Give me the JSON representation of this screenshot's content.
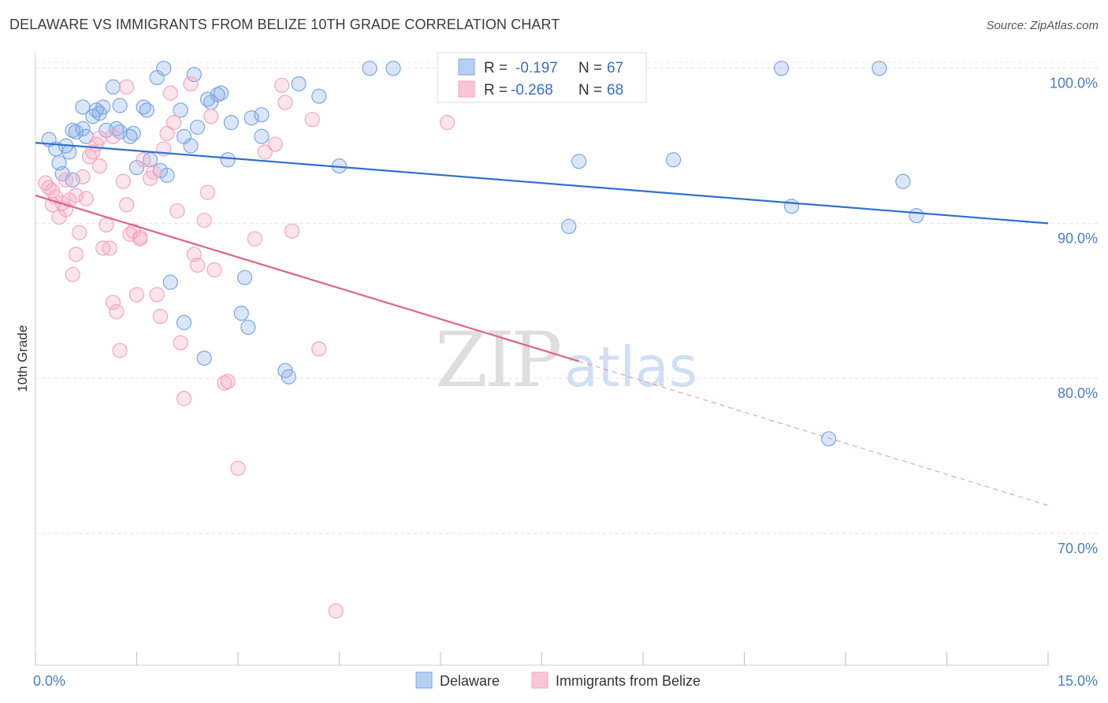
{
  "title": "DELAWARE VS IMMIGRANTS FROM BELIZE 10TH GRADE CORRELATION CHART",
  "source": "Source: ZipAtlas.com",
  "chart_data": {
    "type": "scatter",
    "ylabel": "10th Grade",
    "x_tick_labels": [
      "0.0%",
      "15.0%"
    ],
    "y_tick_labels": [
      "100.0%",
      "90.0%",
      "80.0%",
      "70.0%"
    ],
    "y_ticks": [
      100,
      90,
      80,
      70
    ],
    "xlim": [
      0,
      15
    ],
    "ylim": [
      61.5,
      101
    ],
    "grid": true,
    "legend_placement": "top-center",
    "watermark": "ZIPatlas",
    "stats": [
      {
        "r_label": "R =",
        "r": "-0.197",
        "n_label": "N =",
        "n": "67"
      },
      {
        "r_label": "R =",
        "r": "-0.268",
        "n_label": "N =",
        "n": "68"
      }
    ],
    "series": [
      {
        "name": "Delaware",
        "color": "#7aa7e6",
        "line_color": "#2f6fd0",
        "trend": {
          "x": [
            0.0,
            15.0
          ],
          "y": [
            95.2,
            90.0
          ]
        },
        "points": [
          [
            0.2,
            95.4
          ],
          [
            0.3,
            94.8
          ],
          [
            0.35,
            93.9
          ],
          [
            0.4,
            93.2
          ],
          [
            0.45,
            95.0
          ],
          [
            0.5,
            94.6
          ],
          [
            0.55,
            96.0
          ],
          [
            0.6,
            95.9
          ],
          [
            0.7,
            96.1
          ],
          [
            0.75,
            95.6
          ],
          [
            0.7,
            97.5
          ],
          [
            0.85,
            96.9
          ],
          [
            0.9,
            97.3
          ],
          [
            0.95,
            97.1
          ],
          [
            1.0,
            97.5
          ],
          [
            1.05,
            96.0
          ],
          [
            1.15,
            98.8
          ],
          [
            1.2,
            96.1
          ],
          [
            1.25,
            97.6
          ],
          [
            1.4,
            95.6
          ],
          [
            1.45,
            95.8
          ],
          [
            1.5,
            93.6
          ],
          [
            1.6,
            97.5
          ],
          [
            1.65,
            97.3
          ],
          [
            1.7,
            94.1
          ],
          [
            1.8,
            99.4
          ],
          [
            1.9,
            100.0
          ],
          [
            1.95,
            93.1
          ],
          [
            2.0,
            86.2
          ],
          [
            2.15,
            97.3
          ],
          [
            2.2,
            95.6
          ],
          [
            2.3,
            95.0
          ],
          [
            2.35,
            99.6
          ],
          [
            2.4,
            96.2
          ],
          [
            2.5,
            81.3
          ],
          [
            2.55,
            98.0
          ],
          [
            2.6,
            97.8
          ],
          [
            2.75,
            98.4
          ],
          [
            2.7,
            98.3
          ],
          [
            2.85,
            94.1
          ],
          [
            2.9,
            96.5
          ],
          [
            3.05,
            84.2
          ],
          [
            3.15,
            83.3
          ],
          [
            3.2,
            96.8
          ],
          [
            3.35,
            97.0
          ],
          [
            3.35,
            95.6
          ],
          [
            3.7,
            80.5
          ],
          [
            3.75,
            80.1
          ],
          [
            3.9,
            99.0
          ],
          [
            4.2,
            98.2
          ],
          [
            4.5,
            93.7
          ],
          [
            4.95,
            100.0
          ],
          [
            5.3,
            100.0
          ],
          [
            7.9,
            89.8
          ],
          [
            8.05,
            94.0
          ],
          [
            9.45,
            94.1
          ],
          [
            11.05,
            100.0
          ],
          [
            11.2,
            91.1
          ],
          [
            11.75,
            76.1
          ],
          [
            12.5,
            100.0
          ],
          [
            12.85,
            92.7
          ],
          [
            13.05,
            90.5
          ],
          [
            1.85,
            93.4
          ],
          [
            2.2,
            83.6
          ],
          [
            3.1,
            86.5
          ],
          [
            1.25,
            95.9
          ],
          [
            0.55,
            92.8
          ]
        ]
      },
      {
        "name": "Immigrants from Belize",
        "color": "#f4a6bf",
        "line_color": "#e0628f",
        "trend": {
          "x": [
            0.0,
            8.05
          ],
          "y": [
            91.8,
            81.1
          ]
        },
        "trend_dashed": {
          "x": [
            8.05,
            15.0
          ],
          "y": [
            81.1,
            71.8
          ]
        },
        "points": [
          [
            0.15,
            92.6
          ],
          [
            0.2,
            92.3
          ],
          [
            0.25,
            91.2
          ],
          [
            0.3,
            91.7
          ],
          [
            0.35,
            90.4
          ],
          [
            0.4,
            91.3
          ],
          [
            0.45,
            92.8
          ],
          [
            0.5,
            91.5
          ],
          [
            0.55,
            86.7
          ],
          [
            0.6,
            88.0
          ],
          [
            0.65,
            89.4
          ],
          [
            0.7,
            93.0
          ],
          [
            0.75,
            91.6
          ],
          [
            0.8,
            94.3
          ],
          [
            0.85,
            94.6
          ],
          [
            0.9,
            95.1
          ],
          [
            0.95,
            93.7
          ],
          [
            1.0,
            88.4
          ],
          [
            1.05,
            89.9
          ],
          [
            1.1,
            88.4
          ],
          [
            1.15,
            84.9
          ],
          [
            1.2,
            84.3
          ],
          [
            1.25,
            81.8
          ],
          [
            1.3,
            92.7
          ],
          [
            1.35,
            91.2
          ],
          [
            1.4,
            89.3
          ],
          [
            1.45,
            89.5
          ],
          [
            1.5,
            85.4
          ],
          [
            1.55,
            89.0
          ],
          [
            1.6,
            94.1
          ],
          [
            1.7,
            92.9
          ],
          [
            1.75,
            93.3
          ],
          [
            1.8,
            85.4
          ],
          [
            1.85,
            84.0
          ],
          [
            1.9,
            94.8
          ],
          [
            1.95,
            95.8
          ],
          [
            2.0,
            98.4
          ],
          [
            2.05,
            96.5
          ],
          [
            2.1,
            90.8
          ],
          [
            2.15,
            82.3
          ],
          [
            2.2,
            78.7
          ],
          [
            2.3,
            99.0
          ],
          [
            2.35,
            88.0
          ],
          [
            2.4,
            87.3
          ],
          [
            2.5,
            90.2
          ],
          [
            2.55,
            92.0
          ],
          [
            2.6,
            96.9
          ],
          [
            2.65,
            87.0
          ],
          [
            2.8,
            79.7
          ],
          [
            2.85,
            79.8
          ],
          [
            3.0,
            74.2
          ],
          [
            3.25,
            89.0
          ],
          [
            3.4,
            94.6
          ],
          [
            3.55,
            95.1
          ],
          [
            3.7,
            97.8
          ],
          [
            3.65,
            98.9
          ],
          [
            3.8,
            89.5
          ],
          [
            4.1,
            96.7
          ],
          [
            4.2,
            81.9
          ],
          [
            4.45,
            65.0
          ],
          [
            6.1,
            96.5
          ],
          [
            0.25,
            92.1
          ],
          [
            0.45,
            90.9
          ],
          [
            0.6,
            91.8
          ],
          [
            1.15,
            95.6
          ],
          [
            1.35,
            98.8
          ],
          [
            1.55,
            89.1
          ],
          [
            0.95,
            95.5
          ]
        ]
      }
    ]
  }
}
